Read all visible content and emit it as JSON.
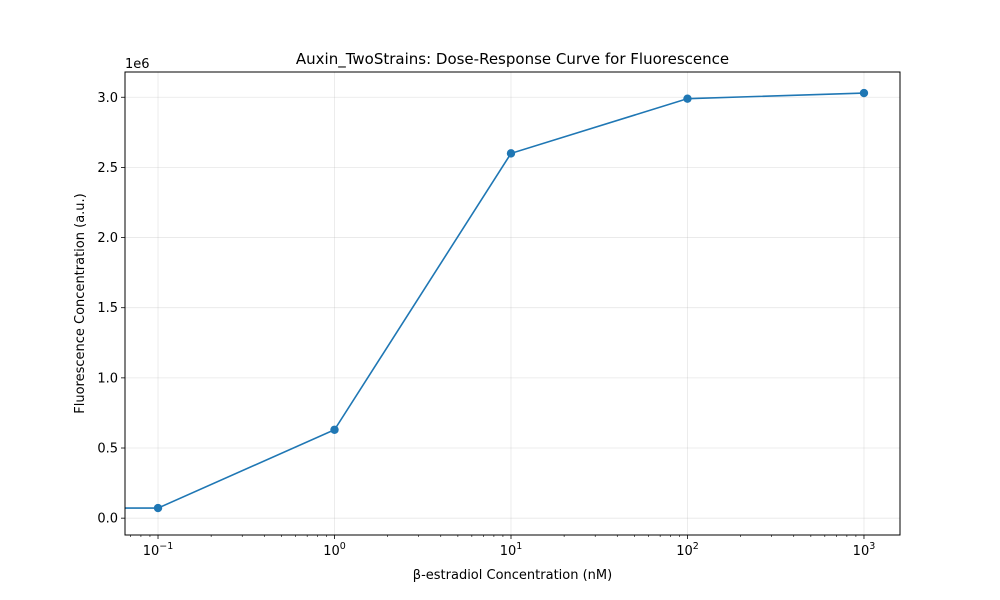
{
  "chart_data": {
    "type": "line",
    "title": "Auxin_TwoStrains: Dose-Response Curve for Fluorescence",
    "xlabel": "β-estradiol Concentration (nM)",
    "ylabel": "Fluorescence Concentration (a.u.)",
    "y_offset_label": "1e6",
    "x_scale": "log",
    "xlim": [
      0.065,
      1600
    ],
    "ylim": [
      -120000,
      3180000
    ],
    "grid": true,
    "line_color": "#1f77b4",
    "x_ticks": [
      {
        "value": 0.1,
        "base": "10",
        "exp": "−1"
      },
      {
        "value": 1,
        "base": "10",
        "exp": "0"
      },
      {
        "value": 10,
        "base": "10",
        "exp": "1"
      },
      {
        "value": 100,
        "base": "10",
        "exp": "2"
      },
      {
        "value": 1000,
        "base": "10",
        "exp": "3"
      }
    ],
    "y_ticks": [
      {
        "value": 0,
        "label": "0.0"
      },
      {
        "value": 500000,
        "label": "0.5"
      },
      {
        "value": 1000000,
        "label": "1.0"
      },
      {
        "value": 1500000,
        "label": "1.5"
      },
      {
        "value": 2000000,
        "label": "2.0"
      },
      {
        "value": 2500000,
        "label": "2.5"
      },
      {
        "value": 3000000,
        "label": "3.0"
      }
    ],
    "series": [
      {
        "x": [
          0,
          0.1,
          1,
          10,
          100,
          1000
        ],
        "y": [
          72000,
          72000,
          630000,
          2600000,
          2990000,
          3030000
        ]
      }
    ]
  }
}
